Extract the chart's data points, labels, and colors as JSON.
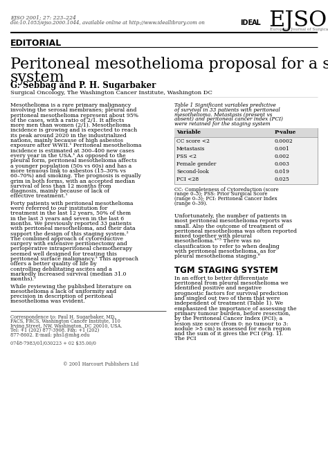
{
  "journal_info": "EJSO 2001; 27: 223–224",
  "doi_info": "doi:10.1053/ejso.2000.1044, available online at http://www.ideallibrary.com on",
  "ejso_title": "EJSO",
  "ejso_subtitle": "European Journal of Surgical Oncology",
  "section": "EDITORIAL",
  "title_line1": "Peritoneal mesothelioma proposal for a staging",
  "title_line2": "system",
  "authors": "G. Sebbag and P. H. Sugarbaker",
  "affiliation": "Surgical Oncology, The Washington Cancer Institute, Washington DC",
  "abstract_text": "Mesothelioma is a rare primary malignancy involving the serosal membranes; pleural and peritoneal mesothelioma represent about 95% of the cases, with a ratio of 2/1. It affects more men than women (2/1). Mesothelioma incidence is growing and is expected to reach its peak around 2020 in the industrialized nations, mainly because of high asbestos exposure after WWII.¹ Peritoneal mesothelioma incidence is estimated at 300–400 new cases every year in the USA.¹ As opposed to the pleural form, peritoneal mesothelioma affects a younger population (50s vs 60s) and has a more tenuous link to asbestos (15–30% vs 60–70%) and smoking. The prognosis is equally grim in both forms, with an accepted median survival of less than 12 months from diagnosis, mainly because of lack of effective treatment.¹",
  "para2": "    Forty patients with peritoneal mesothelioma were referred to our institution for treatment in the last 12 years, 50% of them in the last 3 years and seven in the last 6 months. We previously reported 33 patients with peritoneal mesothelioma, and their data support the design of this staging system.² The combined approach of cytoreductive surgery with extensive peritonectomy and perioperative intraperitoneal chemotherapy seemed well designed for treating this peritoneal surface malignancy.³ This approach offers a better quality of life by controlling debilitating ascites and a markedly increased survival (median 31.0 months).²",
  "para3": "    While reviewing the published literature on mesothelioma a lack of uniformity and precision in description of peritoneal mesothelioma was evident.",
  "correspondence": "Correspondence to: Paul H. Sugarbaker, MD, FACS, FRCS, Washington Cancer Institute, 110 Irving Street, NW, Washington, DC 20010, USA. Tel: +1 (202) 877-3908. Fax: +1 (202) 877-8602. E-mail: phs1@mhg.edu",
  "copyright_line": "0748-7983/01/030223 + 02 $35.00/0",
  "copyright_right": "© 2001 Harcourt Publishers Ltd",
  "table_title": "Table 1  Significant variables predictive of survival in 33 patients with peritoneal mesothelioma. Metastasis (present vs absent) and peritoneal cancer index (PCI) were retained for the staging system",
  "table_headers": [
    "Variable",
    "P-value"
  ],
  "table_rows": [
    [
      "CC score <2",
      "0.0002"
    ],
    [
      "Metastasis",
      "0.001"
    ],
    [
      "PSS <2",
      "0.002"
    ],
    [
      "Female gender",
      "0.003"
    ],
    [
      "Second-look",
      "0.019"
    ],
    [
      "PCI <28",
      "0.025"
    ]
  ],
  "table_footnote": "CC: Completeness of Cytoreduction (score range 0–3); PSS: Prior Surgical Score (range 0–3); PCI: Peritoneal Cancer Index (range 0–39).",
  "right_para1": "Unfortunately, the number of patients in most peritoneal mesothelioma reports was small. Also the outcome of treatment of peritoneal mesothelioma was often reported mixed together with pleural mesothelioma.⁴˄⁵ There was no classification to refer to when dealing with peritoneal mesothelioma, as for pleural mesothelioma staging.⁶",
  "tgm_heading": "TGM STAGING SYSTEM",
  "tgm_para": "In an effort to better differentiate peritoneal from pleural mesothelioma we identified positive and negative prognostic factors for survival prediction and singled out two of them that were independent of treatment (Table 1). We emphasized the importance of assessing the primary tumour burden, before resection, by the Peritoneal Cancer Index (PCI); a lesion size score (from 0: no tumour to 3: nodule >5 cm) is assessed for each region and the sum of it gives the PCI (Fig. 1). The PCI"
}
